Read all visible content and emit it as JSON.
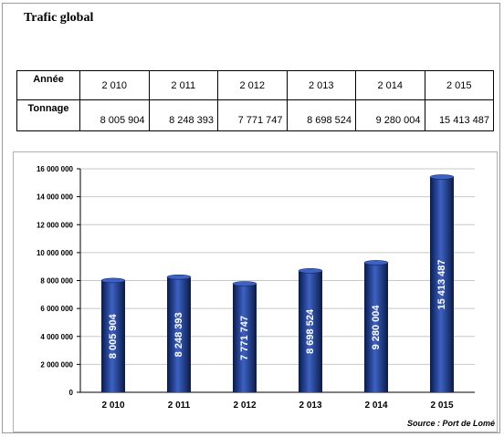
{
  "title": "Trafic global",
  "table": {
    "row_headers": [
      "Année",
      "Tonnage"
    ],
    "years": [
      "2 010",
      "2 011",
      "2 012",
      "2 013",
      "2 014",
      "2 015"
    ],
    "tonnage": [
      "8 005 904",
      "8 248 393",
      "7 771 747",
      "8 698 524",
      "9 280 004",
      "15 413 487"
    ]
  },
  "source": "Source : Port de Lomé",
  "chart_data": {
    "type": "bar",
    "categories": [
      "2 010",
      "2 011",
      "2 012",
      "2 013",
      "2 014",
      "2 015"
    ],
    "values": [
      8005904,
      8248393,
      7771747,
      8698524,
      9280004,
      15413487
    ],
    "data_labels": [
      "8 005 904",
      "8 248 393",
      "7 771 747",
      "8 698 524",
      "9 280 004",
      "15 413 487"
    ],
    "ylim": [
      0,
      16000000
    ],
    "yticks": [
      0,
      2000000,
      4000000,
      6000000,
      8000000,
      10000000,
      12000000,
      14000000,
      16000000
    ],
    "ytick_labels": [
      "0",
      "2 000 000",
      "4 000 000",
      "6 000 000",
      "8 000 000",
      "10 000 000",
      "12 000 000",
      "14 000 000",
      "16 000 000"
    ],
    "grid": true,
    "bar_color": "#1a3a8c",
    "bar_color_dark": "#0a1a4a",
    "bar_color_light": "#3d62c4"
  }
}
